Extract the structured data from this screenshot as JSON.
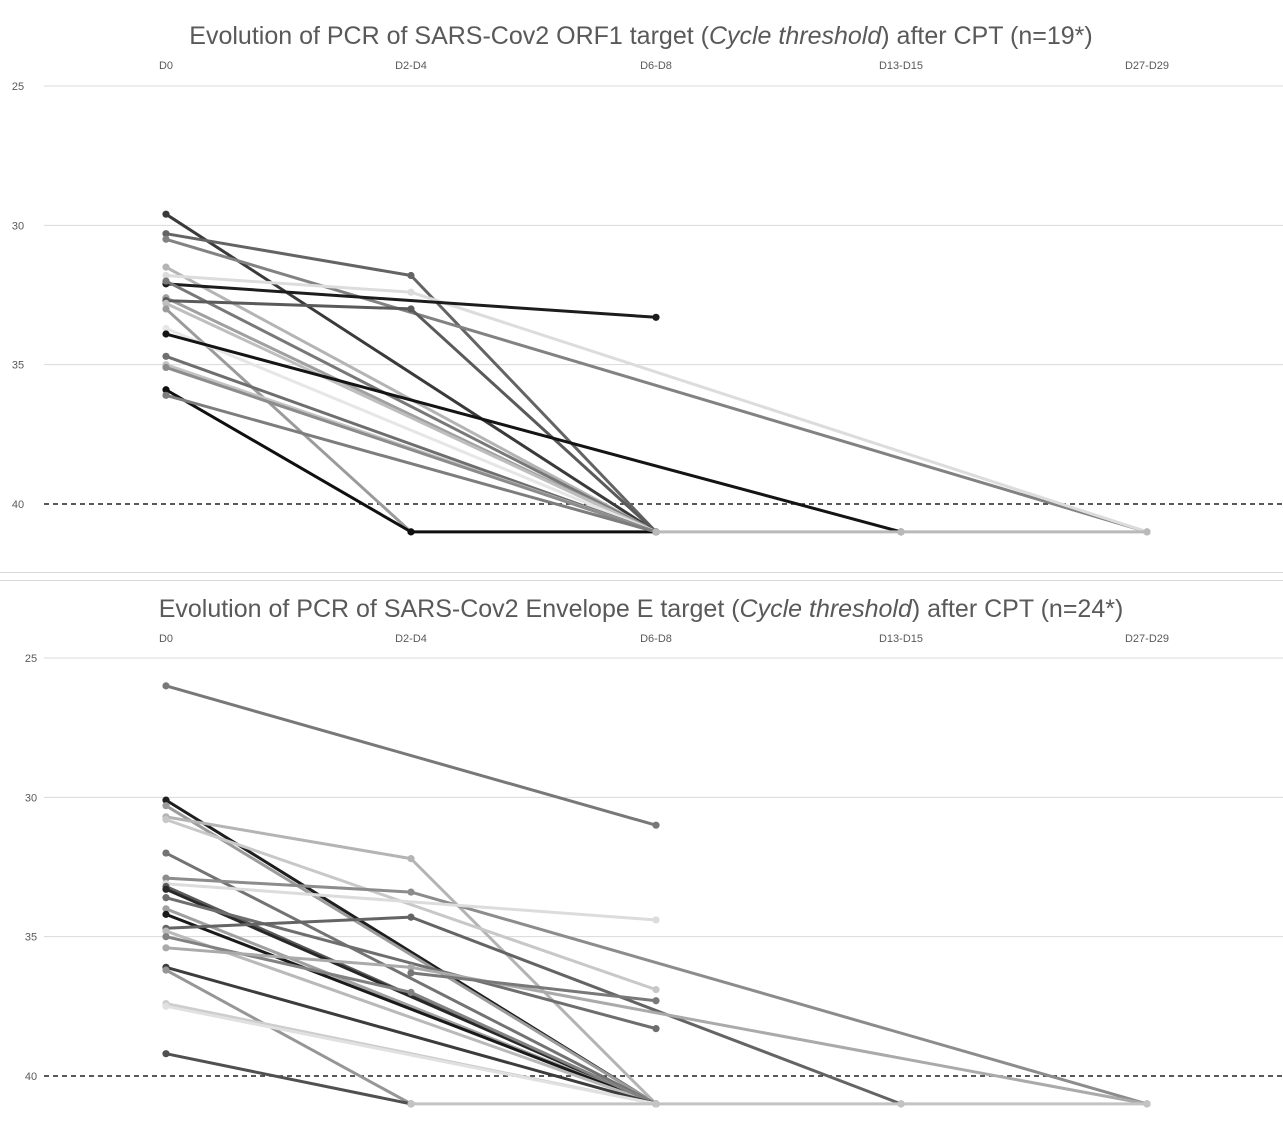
{
  "chart_data": [
    {
      "type": "line",
      "title_prefix": "Evolution of PCR of SARS-Cov2 ORF1 target (",
      "title_italic": "Cycle threshold",
      "title_suffix": ") after CPT (n=19*)",
      "categories": [
        "D0",
        "D2-D4",
        "D6-D8",
        "D13-D15",
        "D27-D29"
      ],
      "y_ticks": [
        "25",
        "30",
        "35",
        "40"
      ],
      "y_tick_values": [
        25,
        30,
        35,
        40
      ],
      "ylim": [
        25,
        41
      ],
      "y_axis_inverted": true,
      "threshold": 40,
      "grid": true,
      "series": [
        {
          "color": "#3a3a3a",
          "values": [
            29.6,
            null,
            41,
            null,
            null
          ]
        },
        {
          "color": "#646464",
          "values": [
            30.3,
            31.8,
            41,
            null,
            null
          ]
        },
        {
          "color": "#828282",
          "values": [
            30.5,
            null,
            null,
            null,
            41
          ]
        },
        {
          "color": "#b4b4b4",
          "values": [
            31.5,
            null,
            41,
            null,
            null
          ]
        },
        {
          "color": "#dcdcdc",
          "values": [
            31.8,
            32.4,
            null,
            null,
            41
          ]
        },
        {
          "color": "#1c1c1c",
          "values": [
            32.1,
            null,
            33.3,
            null,
            null
          ]
        },
        {
          "color": "#787878",
          "values": [
            32.0,
            null,
            41,
            null,
            null
          ]
        },
        {
          "color": "#a0a0a0",
          "values": [
            32.6,
            null,
            41,
            null,
            null
          ]
        },
        {
          "color": "#5a5a5a",
          "values": [
            32.7,
            33.0,
            41,
            null,
            null
          ]
        },
        {
          "color": "#bebebe",
          "values": [
            32.8,
            null,
            41,
            null,
            null
          ]
        },
        {
          "color": "#9b9b9b",
          "values": [
            33.0,
            41,
            null,
            null,
            null
          ]
        },
        {
          "color": "#e6e6e6",
          "values": [
            33.7,
            null,
            41,
            null,
            null
          ]
        },
        {
          "color": "#141414",
          "values": [
            33.9,
            null,
            null,
            41,
            null
          ]
        },
        {
          "color": "#6e6e6e",
          "values": [
            34.7,
            null,
            41,
            null,
            null
          ]
        },
        {
          "color": "#c3c3c3",
          "values": [
            35.0,
            null,
            41,
            null,
            null
          ]
        },
        {
          "color": "#8c8c8c",
          "values": [
            35.1,
            null,
            41,
            null,
            null
          ]
        },
        {
          "color": "#0f0f0f",
          "values": [
            35.9,
            41,
            41,
            null,
            null
          ]
        },
        {
          "color": "#7d7d7d",
          "values": [
            36.1,
            null,
            41,
            null,
            null
          ]
        },
        {
          "color": "#b9b9b9",
          "values": [
            null,
            null,
            41,
            41,
            41
          ]
        }
      ]
    },
    {
      "type": "line",
      "title_prefix": "Evolution of PCR of SARS-Cov2 Envelope E target (",
      "title_italic": "Cycle threshold",
      "title_suffix": ") after CPT (n=24*)",
      "categories": [
        "D0",
        "D2-D4",
        "D6-D8",
        "D13-D15",
        "D27-D29"
      ],
      "y_ticks": [
        "25",
        "30",
        "35",
        "40"
      ],
      "y_tick_values": [
        25,
        30,
        35,
        40
      ],
      "ylim": [
        25,
        41
      ],
      "y_axis_inverted": true,
      "threshold": 40,
      "grid": true,
      "series": [
        {
          "color": "#787878",
          "values": [
            26.0,
            null,
            31.0,
            null,
            null
          ]
        },
        {
          "color": "#1e1e1e",
          "values": [
            30.1,
            null,
            41,
            null,
            null
          ]
        },
        {
          "color": "#9b9b9b",
          "values": [
            30.3,
            null,
            41,
            null,
            null
          ]
        },
        {
          "color": "#b4b4b4",
          "values": [
            30.7,
            32.2,
            41,
            null,
            null
          ]
        },
        {
          "color": "#c8c8c8",
          "values": [
            30.8,
            null,
            36.9,
            null,
            null
          ]
        },
        {
          "color": "#737373",
          "values": [
            32.0,
            null,
            41,
            null,
            null
          ]
        },
        {
          "color": "#8c8c8c",
          "values": [
            32.9,
            33.4,
            null,
            null,
            41
          ]
        },
        {
          "color": "#dcdcdc",
          "values": [
            33.1,
            null,
            34.4,
            null,
            null
          ]
        },
        {
          "color": "#5a5a5a",
          "values": [
            33.2,
            null,
            41,
            null,
            null
          ]
        },
        {
          "color": "#282828",
          "values": [
            33.3,
            null,
            41,
            null,
            null
          ]
        },
        {
          "color": "#6e6e6e",
          "values": [
            33.6,
            null,
            38.3,
            null,
            null
          ]
        },
        {
          "color": "#a0a0a0",
          "values": [
            34.0,
            null,
            41,
            null,
            null
          ]
        },
        {
          "color": "#1a1a1a",
          "values": [
            34.2,
            null,
            41,
            null,
            null
          ]
        },
        {
          "color": "#646464",
          "values": [
            34.7,
            34.3,
            null,
            41,
            null
          ]
        },
        {
          "color": "#b9b9b9",
          "values": [
            34.8,
            null,
            41,
            null,
            null
          ]
        },
        {
          "color": "#828282",
          "values": [
            35.0,
            37.0,
            41,
            null,
            null
          ]
        },
        {
          "color": "#aaaaaa",
          "values": [
            35.4,
            36.1,
            null,
            null,
            41
          ]
        },
        {
          "color": "#3c3c3c",
          "values": [
            36.1,
            null,
            41,
            null,
            null
          ]
        },
        {
          "color": "#969696",
          "values": [
            36.2,
            41,
            null,
            null,
            null
          ]
        },
        {
          "color": "#cdcdcd",
          "values": [
            37.4,
            null,
            41,
            null,
            null
          ]
        },
        {
          "color": "#e1e1e1",
          "values": [
            37.5,
            null,
            41,
            null,
            null
          ]
        },
        {
          "color": "#505050",
          "values": [
            39.2,
            41,
            null,
            null,
            null
          ]
        },
        {
          "color": "#787878",
          "values": [
            null,
            36.3,
            37.3,
            null,
            null
          ]
        },
        {
          "color": "#c3c3c3",
          "values": [
            null,
            41,
            41,
            41,
            41
          ]
        }
      ]
    }
  ]
}
